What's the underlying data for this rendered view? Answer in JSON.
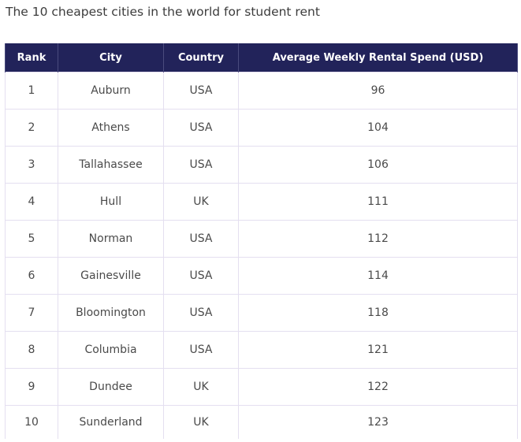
{
  "title": "The 10 cheapest cities in the world for student rent",
  "table": {
    "headers": [
      "Rank",
      "City",
      "Country",
      "Average Weekly Rental Spend (USD)"
    ],
    "rows": [
      [
        "1",
        "Auburn",
        "USA",
        "96"
      ],
      [
        "2",
        "Athens",
        "USA",
        "104"
      ],
      [
        "3",
        "Tallahassee",
        "USA",
        "106"
      ],
      [
        "4",
        "Hull",
        "UK",
        "111"
      ],
      [
        "5",
        "Norman",
        "USA",
        "112"
      ],
      [
        "6",
        "Gainesville",
        "USA",
        "114"
      ],
      [
        "7",
        "Bloomington",
        "USA",
        "118"
      ],
      [
        "8",
        "Columbia",
        "USA",
        "121"
      ],
      [
        "9",
        "Dundee",
        "UK",
        "122"
      ],
      [
        "10",
        "Sunderland",
        "UK",
        "123"
      ]
    ]
  },
  "colors": {
    "header_bg": "#22235a",
    "header_text": "#ffffff",
    "cell_border": "#e4dff0"
  }
}
